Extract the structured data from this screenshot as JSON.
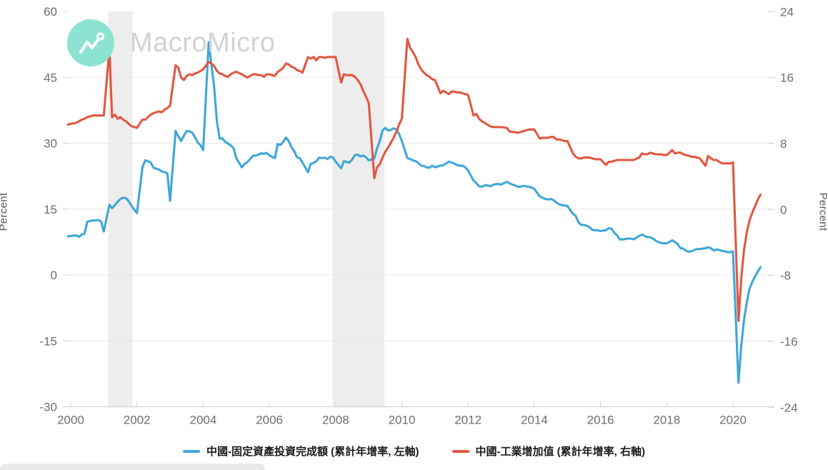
{
  "chart_data": {
    "type": "line",
    "watermark": {
      "text": "MacroMicro",
      "icon": "line-chart-icon",
      "circle_color": "#8CE4D0",
      "text_color": "#D2D2D2"
    },
    "x_axis": {
      "tick_labels": [
        "2000",
        "2002",
        "2004",
        "2006",
        "2008",
        "2010",
        "2012",
        "2014",
        "2016",
        "2018",
        "2020"
      ],
      "ticks": [
        2000,
        2002,
        2004,
        2006,
        2008,
        2010,
        2012,
        2014,
        2016,
        2018,
        2020
      ]
    },
    "left_axis": {
      "title": "Percent",
      "ticks": [
        60,
        45,
        30,
        15,
        0,
        -15,
        -30
      ],
      "range": [
        -30,
        60
      ]
    },
    "right_axis": {
      "title": "Percent",
      "ticks": [
        24,
        16,
        8,
        0,
        -8,
        -16,
        -24
      ],
      "range": [
        -24,
        24
      ]
    },
    "grid": "horizontal only",
    "legend_position": "bottom center",
    "recession_bands": [
      {
        "start": 2001.13,
        "end": 2001.87
      },
      {
        "start": 2007.9,
        "end": 2009.47
      }
    ],
    "sampling_note": "points are month-end cumulative year-over-year growth; Jan merged into Feb; rows are [year, first_month, values...]",
    "series": [
      {
        "name": "中國-固定資產投資完成額 (累計年增率, 左軸)",
        "axis": "left",
        "color": "#3FA7D8",
        "points": [
          [
            1999,
            11,
            [
              8.8,
              8.9
            ]
          ],
          [
            2000,
            2,
            [
              9.0,
              8.7,
              9.2,
              9.4,
              12.1,
              12.3,
              12.4,
              12.4,
              12.5,
              12.2,
              9.9
            ]
          ],
          [
            2001,
            2,
            [
              16.0,
              15.2,
              15.9,
              16.7,
              17.3,
              17.6,
              17.5,
              16.8,
              15.8,
              14.9,
              14.1
            ]
          ],
          [
            2002,
            2,
            [
              24.5,
              26.1,
              25.9,
              25.6,
              24.4,
              24.2,
              24.0,
              23.6,
              23.4,
              23.2,
              16.9
            ]
          ],
          [
            2003,
            2,
            [
              32.8,
              31.6,
              30.5,
              31.7,
              32.8,
              32.7,
              32.4,
              31.4,
              30.2,
              29.6,
              28.4
            ]
          ],
          [
            2004,
            2,
            [
              53.0,
              47.8,
              42.8,
              34.8,
              31.0,
              31.1,
              30.3,
              29.9,
              29.5,
              28.9,
              26.6
            ]
          ],
          [
            2005,
            2,
            [
              24.5,
              25.3,
              25.7,
              26.4,
              27.1,
              27.2,
              27.4,
              27.7,
              27.6,
              27.8,
              27.2
            ]
          ],
          [
            2006,
            2,
            [
              26.6,
              29.8,
              29.6,
              30.3,
              31.3,
              30.5,
              29.1,
              28.2,
              26.8,
              26.6,
              25.6
            ]
          ],
          [
            2007,
            2,
            [
              23.4,
              25.3,
              25.5,
              25.9,
              26.7,
              26.6,
              26.7,
              26.4,
              26.9,
              26.8,
              25.8
            ]
          ],
          [
            2008,
            2,
            [
              24.3,
              25.9,
              25.7,
              25.6,
              26.3,
              27.3,
              27.4,
              27.0,
              27.2,
              26.8,
              26.1
            ]
          ],
          [
            2009,
            2,
            [
              26.5,
              28.8,
              30.5,
              32.9,
              33.5,
              32.9,
              33.0,
              33.4,
              33.1,
              32.1,
              30.5
            ]
          ],
          [
            2010,
            2,
            [
              26.6,
              26.4,
              26.1,
              25.9,
              25.5,
              24.9,
              24.8,
              24.5,
              24.4,
              24.9,
              24.5
            ]
          ],
          [
            2011,
            2,
            [
              24.9,
              25.0,
              25.4,
              25.8,
              25.6,
              25.4,
              25.0,
              24.9,
              24.9,
              24.5,
              23.8
            ]
          ],
          [
            2012,
            2,
            [
              21.5,
              20.9,
              20.2,
              20.1,
              20.4,
              20.4,
              20.2,
              20.5,
              20.7,
              20.7,
              20.6
            ]
          ],
          [
            2013,
            2,
            [
              21.2,
              20.9,
              20.6,
              20.4,
              20.1,
              20.1,
              20.3,
              20.2,
              20.1,
              19.9,
              19.6
            ]
          ],
          [
            2014,
            2,
            [
              17.9,
              17.6,
              17.3,
              17.2,
              17.3,
              17.0,
              16.5,
              16.1,
              15.9,
              15.8,
              15.7
            ]
          ],
          [
            2015,
            2,
            [
              13.9,
              13.5,
              12.0,
              11.4,
              11.4,
              11.2,
              10.9,
              10.3,
              10.2,
              10.2,
              10.0
            ]
          ],
          [
            2016,
            2,
            [
              10.2,
              10.7,
              10.5,
              9.6,
              9.0,
              8.1,
              8.1,
              8.2,
              8.3,
              8.3,
              8.1
            ]
          ],
          [
            2017,
            2,
            [
              8.9,
              9.2,
              8.9,
              8.6,
              8.6,
              8.3,
              7.8,
              7.5,
              7.3,
              7.2,
              7.2
            ]
          ],
          [
            2018,
            2,
            [
              7.9,
              7.5,
              7.0,
              6.1,
              6.0,
              5.5,
              5.3,
              5.4,
              5.7,
              5.9,
              5.9
            ]
          ],
          [
            2019,
            2,
            [
              6.1,
              6.3,
              6.1,
              5.6,
              5.8,
              5.7,
              5.5,
              5.4,
              5.2,
              5.2,
              5.4
            ]
          ],
          [
            2020,
            2,
            [
              -24.5,
              -16.1,
              -10.3,
              -6.3,
              -3.1,
              -1.6,
              -0.3,
              0.8,
              1.8
            ]
          ]
        ]
      },
      {
        "name": "中國-工業增加值 (累計年增率, 右軸)",
        "axis": "right",
        "color": "#E25740",
        "points": [
          [
            1999,
            11,
            [
              10.3,
              10.4
            ]
          ],
          [
            2000,
            2,
            [
              10.5,
              10.7,
              10.9,
              11.0,
              11.2,
              11.3,
              11.4,
              11.4,
              11.4,
              11.4,
              11.4
            ]
          ],
          [
            2001,
            2,
            [
              19.5,
              11.2,
              11.5,
              11.0,
              11.2,
              10.9,
              10.7,
              10.4,
              10.1,
              10.0,
              9.9
            ]
          ],
          [
            2002,
            2,
            [
              10.9,
              10.9,
              11.2,
              11.5,
              11.7,
              11.8,
              11.9,
              11.8,
              12.1,
              12.3,
              12.6
            ]
          ],
          [
            2003,
            2,
            [
              17.5,
              17.2,
              16.0,
              15.7,
              16.2,
              16.4,
              16.3,
              16.5,
              16.6,
              16.8,
              17.0
            ]
          ],
          [
            2004,
            2,
            [
              17.9,
              17.7,
              17.4,
              16.8,
              16.5,
              16.4,
              16.2,
              16.1,
              16.4,
              16.6,
              16.7
            ]
          ],
          [
            2005,
            2,
            [
              16.4,
              16.2,
              16.0,
              16.2,
              16.4,
              16.4,
              16.3,
              16.3,
              16.1,
              16.4,
              16.4
            ]
          ],
          [
            2006,
            2,
            [
              16.2,
              16.7,
              16.9,
              17.2,
              17.7,
              17.6,
              17.3,
              17.2,
              16.9,
              16.8,
              16.6
            ]
          ],
          [
            2007,
            2,
            [
              18.5,
              18.3,
              18.5,
              18.1,
              18.5,
              18.5,
              18.4,
              18.5,
              18.5,
              18.5,
              18.5
            ]
          ],
          [
            2008,
            2,
            [
              15.4,
              16.4,
              16.3,
              16.3,
              16.3,
              16.1,
              15.7,
              15.2,
              14.4,
              13.7,
              12.9
            ]
          ],
          [
            2009,
            2,
            [
              3.8,
              5.1,
              5.5,
              6.3,
              7.0,
              7.5,
              8.1,
              8.7,
              9.4,
              10.3,
              11.0
            ]
          ],
          [
            2010,
            2,
            [
              20.7,
              19.6,
              19.1,
              18.5,
              17.6,
              17.0,
              16.6,
              16.3,
              16.1,
              15.8,
              15.7
            ]
          ],
          [
            2011,
            2,
            [
              14.1,
              14.4,
              14.2,
              14.0,
              14.3,
              14.3,
              14.2,
              14.2,
              14.1,
              14.0,
              13.9
            ]
          ],
          [
            2012,
            2,
            [
              11.4,
              11.6,
              11.0,
              10.7,
              10.5,
              10.3,
              10.1,
              10.0,
              10.0,
              10.0,
              10.0
            ]
          ],
          [
            2013,
            2,
            [
              9.9,
              9.5,
              9.4,
              9.4,
              9.3,
              9.4,
              9.5,
              9.6,
              9.7,
              9.7,
              9.7
            ]
          ],
          [
            2014,
            2,
            [
              8.6,
              8.7,
              8.7,
              8.7,
              8.8,
              8.8,
              8.5,
              8.5,
              8.4,
              8.3,
              8.3
            ]
          ],
          [
            2015,
            2,
            [
              6.8,
              6.4,
              6.2,
              6.2,
              6.3,
              6.3,
              6.3,
              6.2,
              6.1,
              6.1,
              6.1
            ]
          ],
          [
            2016,
            2,
            [
              5.4,
              5.8,
              5.8,
              5.9,
              6.0,
              6.0,
              6.0,
              6.0,
              6.0,
              6.0,
              6.0
            ]
          ],
          [
            2017,
            2,
            [
              6.3,
              6.8,
              6.7,
              6.7,
              6.9,
              6.8,
              6.7,
              6.7,
              6.7,
              6.6,
              6.6
            ]
          ],
          [
            2018,
            2,
            [
              7.2,
              6.8,
              6.9,
              6.9,
              6.7,
              6.6,
              6.5,
              6.4,
              6.4,
              6.3,
              6.2
            ]
          ],
          [
            2019,
            2,
            [
              5.3,
              6.5,
              6.2,
              6.0,
              6.0,
              5.8,
              5.6,
              5.6,
              5.6,
              5.6,
              5.7
            ]
          ],
          [
            2020,
            2,
            [
              -13.5,
              -8.4,
              -4.9,
              -2.8,
              -1.3,
              -0.4,
              0.4,
              1.2,
              1.8
            ]
          ]
        ]
      }
    ],
    "colors": {
      "grid": "#e8e8e8",
      "axis": "#d4d4d4",
      "tick_label": "#6e6e6e",
      "recession_band": "#ededed",
      "legend_text": "#1c1c1c",
      "bottom_bar": "#e9e9e9"
    }
  }
}
